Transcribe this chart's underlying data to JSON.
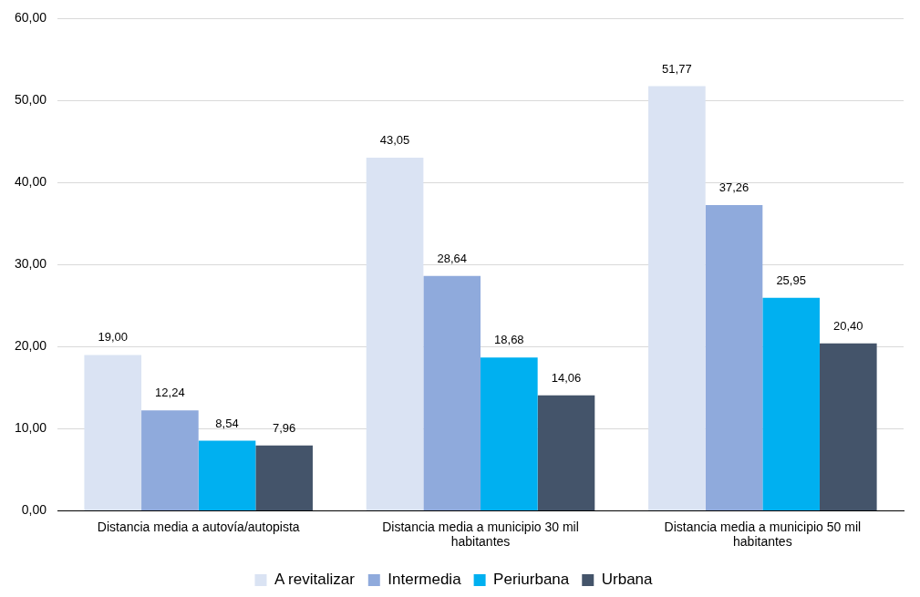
{
  "chart_data": {
    "type": "bar",
    "categories": [
      "Distancia media a autovía/autopista",
      "Distancia media a municipio 30 mil habitantes",
      "Distancia media a municipio 50 mil habitantes"
    ],
    "series": [
      {
        "name": "A revitalizar",
        "color": "#dae3f3",
        "values": [
          19.0,
          43.05,
          51.77
        ],
        "value_labels": [
          "19,00",
          "43,05",
          "51,77"
        ]
      },
      {
        "name": "Intermedia",
        "color": "#8faadc",
        "values": [
          12.24,
          28.64,
          37.26
        ],
        "value_labels": [
          "12,24",
          "28,64",
          "37,26"
        ]
      },
      {
        "name": "Periurbana",
        "color": "#00b0f0",
        "values": [
          8.54,
          18.68,
          25.95
        ],
        "value_labels": [
          "8,54",
          "18,68",
          "25,95"
        ]
      },
      {
        "name": "Urbana",
        "color": "#44546a",
        "values": [
          7.96,
          14.06,
          20.4
        ],
        "value_labels": [
          "7,96",
          "14,06",
          "20,40"
        ]
      }
    ],
    "ylim": [
      0,
      60
    ],
    "yticks": [
      {
        "value": 0,
        "label": "0,00"
      },
      {
        "value": 10,
        "label": "10,00"
      },
      {
        "value": 20,
        "label": "20,00"
      },
      {
        "value": 30,
        "label": "30,00"
      },
      {
        "value": 40,
        "label": "40,00"
      },
      {
        "value": 50,
        "label": "50,00"
      },
      {
        "value": 60,
        "label": "60,00"
      }
    ],
    "grid": "y",
    "legend": "bottom"
  }
}
